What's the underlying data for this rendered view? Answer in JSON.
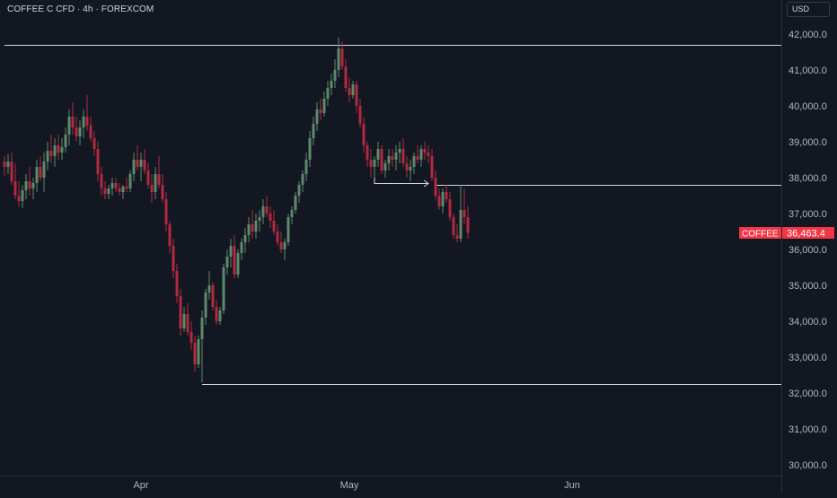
{
  "header": {
    "title": "COFFEE C CFD · 4h · FOREXCOM",
    "currency": "USD"
  },
  "colors": {
    "background": "#131722",
    "up": "#26a69a",
    "down": "#ef5350",
    "up_candle": "#5d8a6a",
    "down_candle": "#b02a40",
    "line": "#d1d4dc",
    "axis_text": "#b2b5be",
    "price_tag": "#f23645"
  },
  "chart_data": {
    "type": "candlestick",
    "symbol": "COFFEE C CFD",
    "interval": "4h",
    "exchange": "FOREXCOM",
    "y_axis": {
      "range": [
        29800,
        42400
      ],
      "ticks": [
        30000,
        31000,
        32000,
        33000,
        34000,
        35000,
        36000,
        37000,
        38000,
        39000,
        40000,
        41000,
        42000
      ],
      "tick_labels": [
        "30,000.0",
        "31,000.0",
        "32,000.0",
        "33,000.0",
        "34,000.0",
        "35,000.0",
        "36,000.0",
        "37,000.0",
        "38,000.0",
        "39,000.0",
        "40,000.0",
        "41,000.0",
        "42,000.0"
      ]
    },
    "x_axis": {
      "labels": [
        "Apr",
        "May",
        "Jun"
      ],
      "label_candle_index": [
        38,
        96,
        158
      ]
    },
    "last_price": {
      "symbol_label": "COFFEE",
      "value": 36463.4,
      "label": "36,463.4"
    },
    "levels": [
      {
        "kind": "horizontal-line",
        "price": 41700,
        "from_candle": 0
      },
      {
        "kind": "horizontal-line",
        "price": 37800,
        "from_candle": 120
      },
      {
        "kind": "horizontal-line",
        "price": 32250,
        "from_candle": 55
      }
    ],
    "arrow": {
      "from_candle": 103,
      "to_candle": 118,
      "start_price": 38030,
      "end_price": 37850
    },
    "candles": [
      [
        38450,
        38600,
        38050,
        38300
      ],
      [
        38300,
        38650,
        38100,
        38450
      ],
      [
        38450,
        38700,
        37800,
        37900
      ],
      [
        37900,
        38400,
        37400,
        37500
      ],
      [
        37500,
        37900,
        37200,
        37350
      ],
      [
        37350,
        37800,
        37150,
        37650
      ],
      [
        37650,
        38100,
        37400,
        37900
      ],
      [
        37900,
        38300,
        37500,
        37700
      ],
      [
        37700,
        38000,
        37400,
        37850
      ],
      [
        37850,
        38500,
        37600,
        38300
      ],
      [
        38300,
        38600,
        37900,
        38000
      ],
      [
        38000,
        38700,
        37600,
        38450
      ],
      [
        38450,
        39000,
        38200,
        38750
      ],
      [
        38750,
        39200,
        38400,
        38600
      ],
      [
        38600,
        39100,
        38300,
        38900
      ],
      [
        38900,
        39200,
        38500,
        38700
      ],
      [
        38700,
        39100,
        38500,
        38850
      ],
      [
        38850,
        39400,
        38700,
        39200
      ],
      [
        39200,
        39900,
        38900,
        39700
      ],
      [
        39700,
        40100,
        39200,
        39400
      ],
      [
        39400,
        39700,
        39000,
        39150
      ],
      [
        39150,
        39600,
        38900,
        39400
      ],
      [
        39400,
        39900,
        39100,
        39700
      ],
      [
        39700,
        40300,
        39300,
        39450
      ],
      [
        39450,
        39700,
        39000,
        39100
      ],
      [
        39100,
        39300,
        38600,
        38800
      ],
      [
        38800,
        39000,
        37900,
        38100
      ],
      [
        38100,
        38300,
        37500,
        37700
      ],
      [
        37700,
        37900,
        37400,
        37550
      ],
      [
        37550,
        37800,
        37400,
        37700
      ],
      [
        37700,
        38000,
        37500,
        37850
      ],
      [
        37850,
        38000,
        37600,
        37700
      ],
      [
        37700,
        37850,
        37500,
        37600
      ],
      [
        37600,
        37800,
        37400,
        37750
      ],
      [
        37750,
        38000,
        37600,
        37700
      ],
      [
        37700,
        38200,
        37600,
        38100
      ],
      [
        38100,
        38700,
        37900,
        38500
      ],
      [
        38500,
        38900,
        38200,
        38300
      ],
      [
        38300,
        38700,
        37900,
        38500
      ],
      [
        38500,
        38800,
        38100,
        38200
      ],
      [
        38200,
        38400,
        37700,
        37800
      ],
      [
        37800,
        38100,
        37300,
        37600
      ],
      [
        37600,
        38300,
        37400,
        38100
      ],
      [
        38100,
        38600,
        37700,
        37800
      ],
      [
        37800,
        38100,
        37300,
        37400
      ],
      [
        37400,
        37600,
        36500,
        36700
      ],
      [
        36700,
        36800,
        35900,
        36100
      ],
      [
        36100,
        36300,
        35200,
        35400
      ],
      [
        35400,
        35600,
        34500,
        34700
      ],
      [
        34700,
        34900,
        33600,
        33800
      ],
      [
        33800,
        34400,
        33700,
        34200
      ],
      [
        34200,
        34500,
        33600,
        33700
      ],
      [
        33700,
        34000,
        33200,
        33400
      ],
      [
        33400,
        33600,
        32600,
        32800
      ],
      [
        32800,
        33600,
        32700,
        33500
      ],
      [
        33500,
        34300,
        32300,
        34100
      ],
      [
        34100,
        34900,
        33900,
        34800
      ],
      [
        34800,
        35400,
        34600,
        35000
      ],
      [
        35000,
        35100,
        34300,
        34400
      ],
      [
        34400,
        34600,
        33900,
        34000
      ],
      [
        34000,
        34400,
        33900,
        34300
      ],
      [
        34300,
        35600,
        34200,
        35500
      ],
      [
        35500,
        36000,
        35300,
        35800
      ],
      [
        35800,
        36300,
        35500,
        36100
      ],
      [
        36100,
        36400,
        35200,
        35300
      ],
      [
        35300,
        36000,
        35200,
        35900
      ],
      [
        35900,
        36300,
        35700,
        36200
      ],
      [
        36200,
        36600,
        35900,
        36400
      ],
      [
        36400,
        36900,
        36200,
        36700
      ],
      [
        36700,
        37100,
        36300,
        36500
      ],
      [
        36500,
        37000,
        36300,
        36800
      ],
      [
        36800,
        37100,
        36500,
        36900
      ],
      [
        36900,
        37400,
        36700,
        37200
      ],
      [
        37200,
        37500,
        36900,
        37000
      ],
      [
        37000,
        37200,
        36600,
        36800
      ],
      [
        36800,
        37100,
        36400,
        36500
      ],
      [
        36500,
        36700,
        36100,
        36200
      ],
      [
        36200,
        36500,
        35900,
        36000
      ],
      [
        36000,
        36300,
        35700,
        36200
      ],
      [
        36200,
        37000,
        36100,
        36900
      ],
      [
        36900,
        37200,
        36700,
        37100
      ],
      [
        37100,
        37600,
        37000,
        37500
      ],
      [
        37500,
        37900,
        37300,
        37800
      ],
      [
        37800,
        38200,
        37600,
        38100
      ],
      [
        38100,
        38700,
        37900,
        38500
      ],
      [
        38500,
        39300,
        38300,
        39100
      ],
      [
        39100,
        39700,
        38900,
        39500
      ],
      [
        39500,
        40100,
        39300,
        39900
      ],
      [
        39900,
        40200,
        39600,
        39800
      ],
      [
        39800,
        40400,
        39700,
        40200
      ],
      [
        40200,
        40700,
        40000,
        40500
      ],
      [
        40500,
        40900,
        40300,
        40700
      ],
      [
        40700,
        41300,
        40500,
        41000
      ],
      [
        41000,
        41900,
        40800,
        41600
      ],
      [
        41600,
        41800,
        41000,
        41100
      ],
      [
        41100,
        41300,
        40400,
        40500
      ],
      [
        40500,
        40800,
        40100,
        40300
      ],
      [
        40300,
        40700,
        40200,
        40600
      ],
      [
        40600,
        40700,
        39800,
        40000
      ],
      [
        40000,
        40200,
        39400,
        39500
      ],
      [
        39500,
        39700,
        38700,
        38900
      ],
      [
        38900,
        39000,
        38300,
        38500
      ],
      [
        38500,
        38800,
        38000,
        38300
      ],
      [
        38300,
        38600,
        38000,
        38500
      ],
      [
        38500,
        39000,
        38300,
        38800
      ],
      [
        38800,
        38900,
        38100,
        38200
      ],
      [
        38200,
        38500,
        38000,
        38400
      ],
      [
        38400,
        38800,
        38200,
        38600
      ],
      [
        38600,
        38800,
        38300,
        38500
      ],
      [
        38500,
        38900,
        38200,
        38700
      ],
      [
        38700,
        39000,
        38400,
        38800
      ],
      [
        38800,
        39100,
        38300,
        38400
      ],
      [
        38400,
        38600,
        38000,
        38200
      ],
      [
        38200,
        38500,
        37900,
        38300
      ],
      [
        38300,
        38700,
        38100,
        38600
      ],
      [
        38600,
        38900,
        38400,
        38500
      ],
      [
        38500,
        38900,
        38300,
        38800
      ],
      [
        38800,
        39000,
        38500,
        38700
      ],
      [
        38700,
        38900,
        38400,
        38600
      ],
      [
        38600,
        38800,
        37900,
        38000
      ],
      [
        38000,
        38200,
        37400,
        37500
      ],
      [
        37500,
        37700,
        37100,
        37200
      ],
      [
        37200,
        37700,
        37000,
        37600
      ],
      [
        37600,
        37800,
        37300,
        37400
      ],
      [
        37400,
        37600,
        36800,
        36900
      ],
      [
        36900,
        37000,
        36300,
        36400
      ],
      [
        36400,
        36700,
        36200,
        36300
      ],
      [
        36300,
        37800,
        36200,
        37100
      ],
      [
        37100,
        37700,
        36700,
        36900
      ],
      [
        36900,
        37200,
        36300,
        36463.4
      ]
    ]
  }
}
